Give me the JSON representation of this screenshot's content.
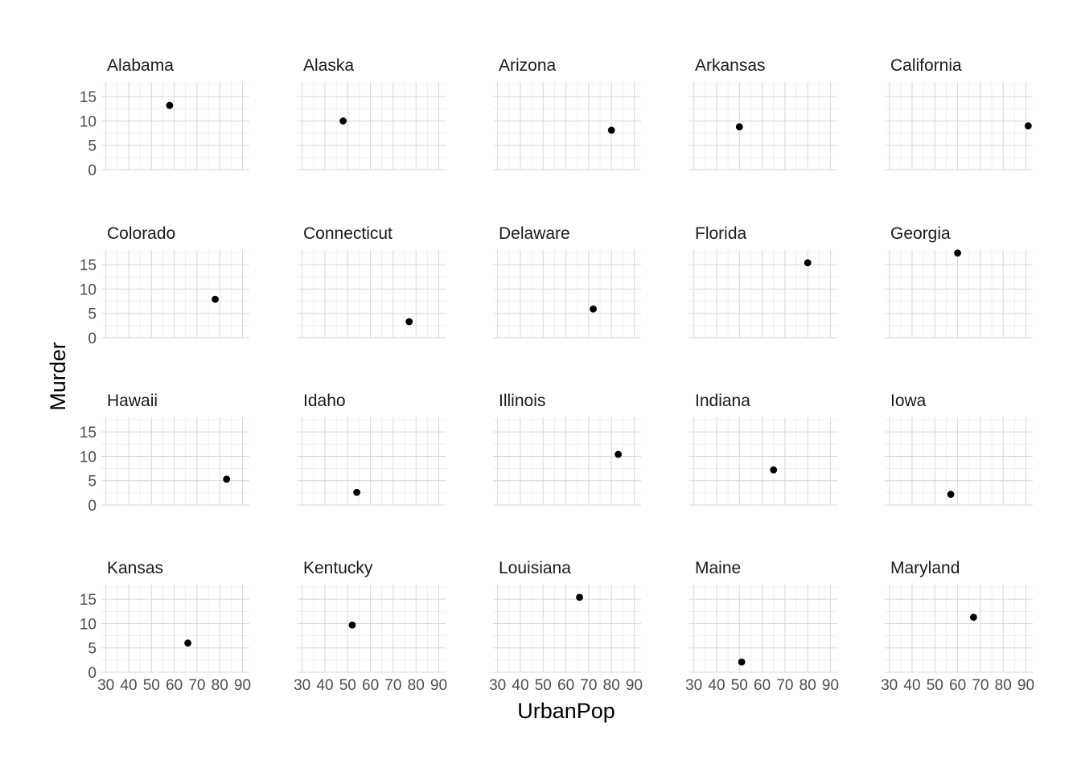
{
  "chart_data": {
    "type": "scatter",
    "facet_layout": {
      "rows": 4,
      "cols": 5
    },
    "xlabel": "UrbanPop",
    "ylabel": "Murder",
    "xlim": [
      28,
      93
    ],
    "ylim": [
      0,
      18
    ],
    "x_ticks": [
      30,
      40,
      50,
      60,
      70,
      80,
      90
    ],
    "y_ticks": [
      0,
      5,
      10,
      15
    ],
    "grid": true,
    "point_color": "#000000",
    "panels": [
      {
        "name": "Alabama",
        "x": 58,
        "y": 13.2
      },
      {
        "name": "Alaska",
        "x": 48,
        "y": 10.0
      },
      {
        "name": "Arizona",
        "x": 80,
        "y": 8.1
      },
      {
        "name": "Arkansas",
        "x": 50,
        "y": 8.8
      },
      {
        "name": "California",
        "x": 91,
        "y": 9.0
      },
      {
        "name": "Colorado",
        "x": 78,
        "y": 7.9
      },
      {
        "name": "Connecticut",
        "x": 77,
        "y": 3.3
      },
      {
        "name": "Delaware",
        "x": 72,
        "y": 5.9
      },
      {
        "name": "Florida",
        "x": 80,
        "y": 15.4
      },
      {
        "name": "Georgia",
        "x": 60,
        "y": 17.4
      },
      {
        "name": "Hawaii",
        "x": 83,
        "y": 5.3
      },
      {
        "name": "Idaho",
        "x": 54,
        "y": 2.6
      },
      {
        "name": "Illinois",
        "x": 83,
        "y": 10.4
      },
      {
        "name": "Indiana",
        "x": 65,
        "y": 7.2
      },
      {
        "name": "Iowa",
        "x": 57,
        "y": 2.2
      },
      {
        "name": "Kansas",
        "x": 66,
        "y": 6.0
      },
      {
        "name": "Kentucky",
        "x": 52,
        "y": 9.7
      },
      {
        "name": "Louisiana",
        "x": 66,
        "y": 15.4
      },
      {
        "name": "Maine",
        "x": 51,
        "y": 2.1
      },
      {
        "name": "Maryland",
        "x": 67,
        "y": 11.3
      }
    ]
  }
}
